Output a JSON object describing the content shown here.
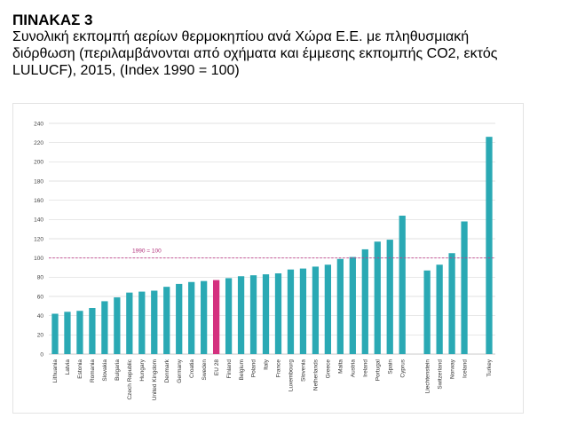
{
  "heading": {
    "title": "ΠΙΝΑΚΑΣ 3",
    "line1": "Συνολική εκπομπή αερίων θερμοκηπίου ανά Χώρα Ε.Ε. με πληθυσμιακή",
    "line2": "διόρθωση (περιλαμβάνονται από οχήματα και έμμεσης εκπομπής CO2, εκτός",
    "line3": "LULUCF), 2015, (Index 1990 = 100)"
  },
  "chart_data": {
    "type": "bar",
    "title": "",
    "xlabel": "",
    "ylabel": "",
    "ylim": [
      0,
      240
    ],
    "yticks": [
      0,
      20,
      40,
      60,
      80,
      100,
      120,
      140,
      160,
      180,
      200,
      220,
      240
    ],
    "grid": true,
    "colors": {
      "bar": "#2aa9b4",
      "highlight": "#d4317f",
      "reference": "#c0408a",
      "grid": "#d9d9d9"
    },
    "reference_line": {
      "value": 100,
      "label": "1990 = 100"
    },
    "categories": [
      "Lithuania",
      "Latvia",
      "Estonia",
      "Romania",
      "Slovakia",
      "Bulgaria",
      "Czech Republic",
      "Hungary",
      "United Kingdom",
      "Denmark",
      "Germany",
      "Croatia",
      "Sweden",
      "EU 28",
      "Finland",
      "Belgium",
      "Poland",
      "Italy",
      "France",
      "Luxembourg",
      "Slovenia",
      "Netherlands",
      "Greece",
      "Malta",
      "Austria",
      "Ireland",
      "Portugal",
      "Spain",
      "Cyprus",
      "",
      "Liechtenstein",
      "Switzerland",
      "Norway",
      "Iceland",
      "",
      "Turkey"
    ],
    "highlight": [
      "EU 28"
    ],
    "values": [
      42,
      44,
      45,
      48,
      55,
      59,
      64,
      65,
      66,
      70,
      73,
      75,
      76,
      77,
      79,
      81,
      82,
      83,
      84,
      88,
      89,
      91,
      93,
      99,
      101,
      109,
      117,
      119,
      144,
      null,
      87,
      93,
      105,
      138,
      null,
      226
    ]
  }
}
